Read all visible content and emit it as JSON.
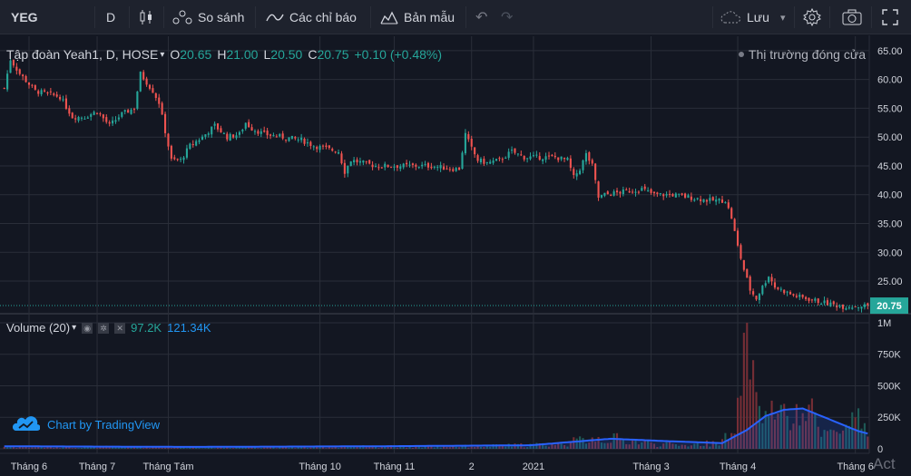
{
  "toolbar": {
    "symbol": "YEG",
    "interval": "D",
    "compare_label": "So sánh",
    "indicators_label": "Các chỉ báo",
    "templates_label": "Bản mẫu",
    "save_label": "Lưu"
  },
  "legend": {
    "title": "Tập đoàn Yeah1, D, HOSE",
    "o_label": "O",
    "o": "20.65",
    "h_label": "H",
    "h": "21.00",
    "l_label": "L",
    "l": "20.50",
    "c_label": "C",
    "c": "20.75",
    "change": "+0.10 (+0.48%)",
    "market_status": "Thị trường đóng cửa"
  },
  "volume_legend": {
    "label": "Volume (20)",
    "v1": "97.2K",
    "v2": "121.34K"
  },
  "brand": "Chart by TradingView",
  "activate_text": "Act",
  "colors": {
    "bg": "#131722",
    "up": "#26a69a",
    "down": "#ef5350",
    "grid": "#2a2e39",
    "ma": "#2962ff"
  },
  "chart_data": {
    "type": "candlestick",
    "price_axis": {
      "ticks": [
        "65.00",
        "60.00",
        "55.00",
        "50.00",
        "45.00",
        "40.00",
        "35.00",
        "30.00",
        "25.00"
      ],
      "tick_values": [
        65,
        60,
        55,
        50,
        45,
        40,
        35,
        30,
        25
      ],
      "ylim": [
        19.5,
        67.5
      ],
      "last_price_label": "20.75",
      "last_price": 20.75
    },
    "volume_axis": {
      "ticks": [
        "1M",
        "750K",
        "500K",
        "250K",
        "0"
      ],
      "tick_values": [
        1000000,
        750000,
        500000,
        250000,
        0
      ],
      "ylim": [
        0,
        1050000
      ]
    },
    "x_axis_labels": [
      "Tháng 6",
      "Tháng 7",
      "Tháng Tám",
      "Tháng 10",
      "Tháng 11",
      "2",
      "2021",
      "Tháng 3",
      "Tháng 4",
      "Tháng 6"
    ],
    "x_label_positions": [
      8,
      30,
      53,
      102,
      126,
      151,
      171,
      209,
      237,
      275
    ],
    "bars_count": 280,
    "price_series": [
      [
        0,
        58.5
      ],
      [
        2,
        63.5
      ],
      [
        5,
        61
      ],
      [
        10,
        58
      ],
      [
        18,
        57
      ],
      [
        22,
        53.5
      ],
      [
        26,
        53.5
      ],
      [
        30,
        54.5
      ],
      [
        34,
        52
      ],
      [
        38,
        54
      ],
      [
        42,
        55
      ],
      [
        44,
        61
      ],
      [
        46,
        59.5
      ],
      [
        48,
        58
      ],
      [
        50,
        56
      ],
      [
        52,
        51
      ],
      [
        54,
        46
      ],
      [
        57,
        46
      ],
      [
        60,
        48.5
      ],
      [
        64,
        50
      ],
      [
        68,
        52
      ],
      [
        72,
        50
      ],
      [
        76,
        50.5
      ],
      [
        78,
        52.5
      ],
      [
        80,
        51.5
      ],
      [
        84,
        50.5
      ],
      [
        90,
        50
      ],
      [
        96,
        49.5
      ],
      [
        100,
        48.5
      ],
      [
        104,
        48
      ],
      [
        108,
        47.5
      ],
      [
        110,
        44
      ],
      [
        112,
        46
      ],
      [
        116,
        45.5
      ],
      [
        120,
        45
      ],
      [
        126,
        45
      ],
      [
        132,
        45
      ],
      [
        138,
        45
      ],
      [
        144,
        44.5
      ],
      [
        147,
        44.5
      ],
      [
        149,
        50.5
      ],
      [
        151,
        48
      ],
      [
        153,
        46
      ],
      [
        156,
        45.5
      ],
      [
        160,
        46
      ],
      [
        164,
        47.5
      ],
      [
        168,
        46.5
      ],
      [
        172,
        46.5
      ],
      [
        178,
        46.5
      ],
      [
        182,
        46
      ],
      [
        184,
        43
      ],
      [
        186,
        44.5
      ],
      [
        188,
        47
      ],
      [
        190,
        45
      ],
      [
        192,
        39.5
      ],
      [
        194,
        40
      ],
      [
        200,
        40.5
      ],
      [
        206,
        41
      ],
      [
        210,
        40
      ],
      [
        216,
        40
      ],
      [
        222,
        39.5
      ],
      [
        228,
        39
      ],
      [
        233,
        39
      ],
      [
        235,
        36
      ],
      [
        237,
        31
      ],
      [
        239,
        27
      ],
      [
        241,
        23.5
      ],
      [
        243,
        22
      ],
      [
        245,
        24
      ],
      [
        247,
        26
      ],
      [
        249,
        24
      ],
      [
        251,
        23.5
      ],
      [
        255,
        22.5
      ],
      [
        259,
        22
      ],
      [
        263,
        21.5
      ],
      [
        267,
        21
      ],
      [
        271,
        20.6
      ],
      [
        275,
        20.65
      ],
      [
        279,
        20.75
      ]
    ],
    "volume_series": [
      [
        0,
        15000
      ],
      [
        20,
        12000
      ],
      [
        40,
        18000
      ],
      [
        60,
        10000
      ],
      [
        80,
        14000
      ],
      [
        100,
        12000
      ],
      [
        120,
        20000
      ],
      [
        140,
        18000
      ],
      [
        160,
        25000
      ],
      [
        180,
        40000
      ],
      [
        190,
        90000
      ],
      [
        200,
        80000
      ],
      [
        210,
        40000
      ],
      [
        220,
        30000
      ],
      [
        230,
        50000
      ],
      [
        236,
        120000
      ],
      [
        238,
        420000
      ],
      [
        240,
        1000000
      ],
      [
        241,
        550000
      ],
      [
        243,
        450000
      ],
      [
        246,
        300000
      ],
      [
        250,
        280000
      ],
      [
        255,
        200000
      ],
      [
        260,
        350000
      ],
      [
        265,
        150000
      ],
      [
        270,
        120000
      ],
      [
        275,
        250000
      ],
      [
        279,
        97200
      ]
    ],
    "volume_ma_series": [
      [
        0,
        20000
      ],
      [
        60,
        15000
      ],
      [
        120,
        20000
      ],
      [
        170,
        28000
      ],
      [
        196,
        80000
      ],
      [
        215,
        60000
      ],
      [
        232,
        45000
      ],
      [
        240,
        150000
      ],
      [
        246,
        260000
      ],
      [
        252,
        310000
      ],
      [
        258,
        320000
      ],
      [
        264,
        260000
      ],
      [
        270,
        200000
      ],
      [
        276,
        140000
      ],
      [
        279,
        121340
      ]
    ]
  }
}
